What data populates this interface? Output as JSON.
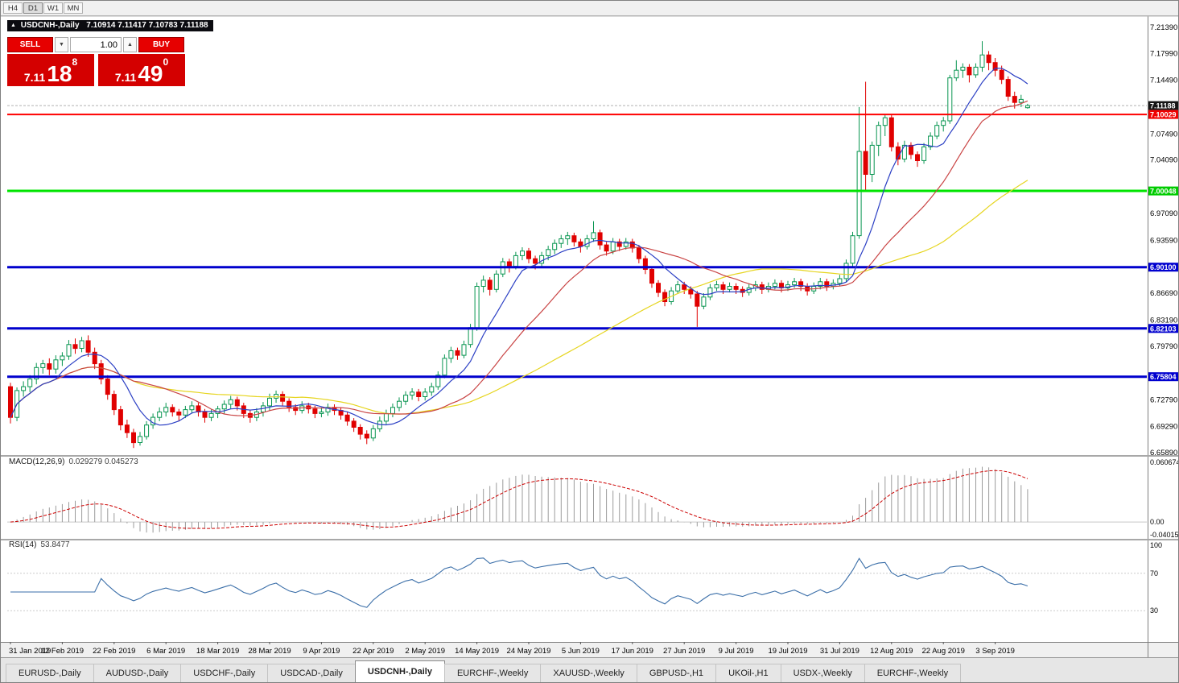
{
  "toolbar": {
    "timeframes": [
      "H4",
      "D1",
      "W1",
      "MN"
    ],
    "active": "D1"
  },
  "icons": {
    "title_arrow": "▲",
    "caret_down": "▼",
    "caret_up": "▲"
  },
  "chart": {
    "title": {
      "symbol": "USDCNH-,Daily",
      "ohlc": "7.10914 7.11417 7.10783 7.11188"
    },
    "trade_panel": {
      "sell_label": "SELL",
      "buy_label": "BUY",
      "volume": "1.00",
      "bid": {
        "big": "7.11",
        "mid": "18",
        "sup": "8"
      },
      "ask": {
        "big": "7.11",
        "mid": "49",
        "sup": "0"
      }
    },
    "price_axis": {
      "ticks": [
        "7.21390",
        "7.17990",
        "7.14490",
        "7.07490",
        "7.04090",
        "6.97090",
        "6.93590",
        "6.86690",
        "6.83190",
        "6.79790",
        "6.72790",
        "6.69290",
        "6.65890"
      ],
      "badges": [
        {
          "text": "7.11188",
          "price": 7.11188,
          "bg": "#161616",
          "fg": "#ffffff"
        },
        {
          "text": "7.10029",
          "price": 7.10029,
          "bg": "#f00000",
          "fg": "#ffffff"
        },
        {
          "text": "7.00048",
          "price": 7.00048,
          "bg": "#00cc00",
          "fg": "#ffffff"
        },
        {
          "text": "6.90100",
          "price": 6.901,
          "bg": "#0000cf",
          "fg": "#ffffff"
        },
        {
          "text": "6.82103",
          "price": 6.82103,
          "bg": "#0000cf",
          "fg": "#ffffff"
        },
        {
          "text": "6.75804",
          "price": 6.75804,
          "bg": "#0000cf",
          "fg": "#ffffff"
        }
      ]
    },
    "hlines": [
      {
        "price": 7.10029,
        "color": "#ff0000",
        "width": 2
      },
      {
        "price": 7.00048,
        "color": "#00e400",
        "width": 3
      },
      {
        "price": 6.901,
        "color": "#0000cd",
        "width": 3
      },
      {
        "price": 6.82103,
        "color": "#0000cd",
        "width": 3
      },
      {
        "price": 6.75804,
        "color": "#0000cd",
        "width": 3
      }
    ]
  },
  "macd_panel": {
    "label": "MACD(12,26,9)",
    "values": "0.029279 0.045273",
    "axis": [
      "0.060674",
      "0.00",
      "-0.040152"
    ]
  },
  "rsi_panel": {
    "label": "RSI(14)",
    "value": "53.8477",
    "axis": [
      "100",
      "70",
      "30"
    ]
  },
  "date_axis": {
    "step": 8,
    "labels": [
      "31 Jan 2019",
      "12 Feb 2019",
      "22 Feb 2019",
      "6 Mar 2019",
      "18 Mar 2019",
      "28 Mar 2019",
      "9 Apr 2019",
      "22 Apr 2019",
      "2 May 2019",
      "14 May 2019",
      "24 May 2019",
      "5 Jun 2019",
      "17 Jun 2019",
      "27 Jun 2019",
      "9 Jul 2019",
      "19 Jul 2019",
      "31 Jul 2019",
      "12 Aug 2019",
      "22 Aug 2019",
      "3 Sep 2019"
    ]
  },
  "tabs": [
    {
      "label": "EURUSD-,Daily",
      "active": false
    },
    {
      "label": "AUDUSD-,Daily",
      "active": false
    },
    {
      "label": "USDCHF-,Daily",
      "active": false
    },
    {
      "label": "USDCAD-,Daily",
      "active": false
    },
    {
      "label": "USDCNH-,Daily",
      "active": true
    },
    {
      "label": "EURCHF-,Weekly",
      "active": false
    },
    {
      "label": "XAUUSD-,Weekly",
      "active": false
    },
    {
      "label": "GBPUSD-,H1",
      "active": false
    },
    {
      "label": "UKOil-,H1",
      "active": false
    },
    {
      "label": "USDX-,Weekly",
      "active": false
    },
    {
      "label": "EURCHF-,Weekly",
      "active": false
    }
  ],
  "chart_data": {
    "type": "candlestick",
    "symbol": "USDCNH-",
    "timeframe": "Daily",
    "bid_price": 7.11188,
    "ask_price": 7.1149,
    "price_scale": {
      "top": 7.2276,
      "bottom": 6.6568
    },
    "colors": {
      "up": "#089550",
      "down": "#e00000"
    },
    "moving_averages": [
      {
        "period": 8,
        "color": "#2b3fc4"
      },
      {
        "period": 20,
        "color": "#c94444"
      },
      {
        "period": 45,
        "color": "#e6d51f"
      }
    ],
    "indicators": [
      {
        "name": "MACD",
        "params": [
          12,
          26,
          9
        ],
        "value": 0.029279,
        "signal": 0.045273
      },
      {
        "name": "RSI",
        "params": [
          14
        ],
        "value": 53.8477
      }
    ],
    "ohlc": [
      [
        6.745,
        6.75,
        6.697,
        6.705
      ],
      [
        6.705,
        6.744,
        6.7,
        6.74
      ],
      [
        6.74,
        6.752,
        6.732,
        6.745
      ],
      [
        6.745,
        6.76,
        6.738,
        6.755
      ],
      [
        6.755,
        6.776,
        6.748,
        6.77
      ],
      [
        6.77,
        6.78,
        6.762,
        6.775
      ],
      [
        6.775,
        6.782,
        6.76,
        6.768
      ],
      [
        6.768,
        6.786,
        6.762,
        6.78
      ],
      [
        6.78,
        6.79,
        6.772,
        6.785
      ],
      [
        6.785,
        6.806,
        6.78,
        6.8
      ],
      [
        6.8,
        6.808,
        6.788,
        6.795
      ],
      [
        6.795,
        6.81,
        6.79,
        6.805
      ],
      [
        6.805,
        6.812,
        6.784,
        6.79
      ],
      [
        6.79,
        6.796,
        6.768,
        6.775
      ],
      [
        6.775,
        6.78,
        6.748,
        6.755
      ],
      [
        6.755,
        6.76,
        6.728,
        6.735
      ],
      [
        6.735,
        6.74,
        6.708,
        6.715
      ],
      [
        6.715,
        6.72,
        6.688,
        6.695
      ],
      [
        6.695,
        6.702,
        6.678,
        6.685
      ],
      [
        6.685,
        6.69,
        6.665,
        6.672
      ],
      [
        6.672,
        6.686,
        6.668,
        6.68
      ],
      [
        6.68,
        6.7,
        6.676,
        6.695
      ],
      [
        6.695,
        6.71,
        6.69,
        6.705
      ],
      [
        6.705,
        6.718,
        6.7,
        6.712
      ],
      [
        6.712,
        6.724,
        6.706,
        6.718
      ],
      [
        6.718,
        6.722,
        6.706,
        6.712
      ],
      [
        6.712,
        6.716,
        6.7,
        6.708
      ],
      [
        6.708,
        6.72,
        6.704,
        6.715
      ],
      [
        6.715,
        6.726,
        6.71,
        6.72
      ],
      [
        6.72,
        6.724,
        6.706,
        6.712
      ],
      [
        6.712,
        6.716,
        6.698,
        6.705
      ],
      [
        6.705,
        6.715,
        6.7,
        6.71
      ],
      [
        6.71,
        6.72,
        6.704,
        6.716
      ],
      [
        6.716,
        6.727,
        6.71,
        6.722
      ],
      [
        6.722,
        6.733,
        6.716,
        6.728
      ],
      [
        6.728,
        6.732,
        6.714,
        6.72
      ],
      [
        6.72,
        6.724,
        6.704,
        6.71
      ],
      [
        6.71,
        6.714,
        6.698,
        6.705
      ],
      [
        6.705,
        6.717,
        6.7,
        6.712
      ],
      [
        6.712,
        6.725,
        6.706,
        6.72
      ],
      [
        6.72,
        6.736,
        6.714,
        6.73
      ],
      [
        6.73,
        6.74,
        6.724,
        6.735
      ],
      [
        6.735,
        6.739,
        6.72,
        6.726
      ],
      [
        6.726,
        6.73,
        6.712,
        6.718
      ],
      [
        6.718,
        6.722,
        6.708,
        6.714
      ],
      [
        6.714,
        6.726,
        6.71,
        6.72
      ],
      [
        6.72,
        6.724,
        6.71,
        6.716
      ],
      [
        6.716,
        6.72,
        6.704,
        6.71
      ],
      [
        6.71,
        6.718,
        6.705,
        6.712
      ],
      [
        6.712,
        6.723,
        6.707,
        6.718
      ],
      [
        6.718,
        6.722,
        6.708,
        6.714
      ],
      [
        6.714,
        6.718,
        6.702,
        6.708
      ],
      [
        6.708,
        6.712,
        6.694,
        6.7
      ],
      [
        6.7,
        6.704,
        6.686,
        6.692
      ],
      [
        6.692,
        6.696,
        6.676,
        6.683
      ],
      [
        6.683,
        6.688,
        6.67,
        6.678
      ],
      [
        6.678,
        6.695,
        6.674,
        6.69
      ],
      [
        6.69,
        6.706,
        6.686,
        6.7
      ],
      [
        6.7,
        6.715,
        6.696,
        6.71
      ],
      [
        6.71,
        6.723,
        6.705,
        6.718
      ],
      [
        6.718,
        6.731,
        6.713,
        6.726
      ],
      [
        6.726,
        6.739,
        6.721,
        6.734
      ],
      [
        6.734,
        6.743,
        6.728,
        6.738
      ],
      [
        6.738,
        6.742,
        6.726,
        6.732
      ],
      [
        6.732,
        6.743,
        6.727,
        6.738
      ],
      [
        6.738,
        6.75,
        6.733,
        6.745
      ],
      [
        6.745,
        6.765,
        6.741,
        6.76
      ],
      [
        6.76,
        6.787,
        6.756,
        6.782
      ],
      [
        6.782,
        6.797,
        6.776,
        6.792
      ],
      [
        6.792,
        6.796,
        6.78,
        6.786
      ],
      [
        6.786,
        6.805,
        6.782,
        6.8
      ],
      [
        6.8,
        6.827,
        6.796,
        6.822
      ],
      [
        6.822,
        6.881,
        6.818,
        6.876
      ],
      [
        6.876,
        6.89,
        6.868,
        6.884
      ],
      [
        6.884,
        6.888,
        6.864,
        6.872
      ],
      [
        6.872,
        6.897,
        6.868,
        6.892
      ],
      [
        6.892,
        6.913,
        6.888,
        6.908
      ],
      [
        6.908,
        6.912,
        6.894,
        6.902
      ],
      [
        6.902,
        6.921,
        6.898,
        6.916
      ],
      [
        6.916,
        6.927,
        6.91,
        6.922
      ],
      [
        6.922,
        6.926,
        6.906,
        6.912
      ],
      [
        6.912,
        6.916,
        6.898,
        6.906
      ],
      [
        6.906,
        6.921,
        6.902,
        6.916
      ],
      [
        6.916,
        6.929,
        6.91,
        6.924
      ],
      [
        6.924,
        6.937,
        6.918,
        6.932
      ],
      [
        6.932,
        6.943,
        6.926,
        6.938
      ],
      [
        6.938,
        6.947,
        6.93,
        6.942
      ],
      [
        6.942,
        6.946,
        6.928,
        6.934
      ],
      [
        6.934,
        6.938,
        6.92,
        6.928
      ],
      [
        6.928,
        6.943,
        6.924,
        6.938
      ],
      [
        6.938,
        6.961,
        6.934,
        6.946
      ],
      [
        6.946,
        6.95,
        6.924,
        6.93
      ],
      [
        6.93,
        6.934,
        6.916,
        6.922
      ],
      [
        6.922,
        6.939,
        6.918,
        6.934
      ],
      [
        6.934,
        6.938,
        6.922,
        6.928
      ],
      [
        6.928,
        6.939,
        6.924,
        6.934
      ],
      [
        6.934,
        6.938,
        6.92,
        6.926
      ],
      [
        6.926,
        6.93,
        6.906,
        6.912
      ],
      [
        6.912,
        6.916,
        6.892,
        6.898
      ],
      [
        6.898,
        6.902,
        6.874,
        6.88
      ],
      [
        6.88,
        6.884,
        6.862,
        6.868
      ],
      [
        6.868,
        6.872,
        6.85,
        6.856
      ],
      [
        6.856,
        6.875,
        6.852,
        6.87
      ],
      [
        6.87,
        6.883,
        6.866,
        6.878
      ],
      [
        6.878,
        6.882,
        6.866,
        6.872
      ],
      [
        6.872,
        6.876,
        6.86,
        6.866
      ],
      [
        6.866,
        6.87,
        6.823,
        6.85
      ],
      [
        6.85,
        6.867,
        6.846,
        6.862
      ],
      [
        6.862,
        6.879,
        6.858,
        6.874
      ],
      [
        6.874,
        6.883,
        6.87,
        6.878
      ],
      [
        6.878,
        6.882,
        6.866,
        6.872
      ],
      [
        6.872,
        6.881,
        6.868,
        6.876
      ],
      [
        6.876,
        6.88,
        6.866,
        6.872
      ],
      [
        6.872,
        6.876,
        6.862,
        6.868
      ],
      [
        6.868,
        6.879,
        6.864,
        6.874
      ],
      [
        6.874,
        6.883,
        6.87,
        6.878
      ],
      [
        6.878,
        6.882,
        6.866,
        6.872
      ],
      [
        6.872,
        6.881,
        6.868,
        6.876
      ],
      [
        6.876,
        6.885,
        6.872,
        6.88
      ],
      [
        6.88,
        6.884,
        6.868,
        6.874
      ],
      [
        6.874,
        6.883,
        6.87,
        6.878
      ],
      [
        6.878,
        6.887,
        6.874,
        6.882
      ],
      [
        6.882,
        6.886,
        6.87,
        6.876
      ],
      [
        6.876,
        6.88,
        6.864,
        6.87
      ],
      [
        6.87,
        6.881,
        6.866,
        6.876
      ],
      [
        6.876,
        6.887,
        6.872,
        6.882
      ],
      [
        6.882,
        6.886,
        6.87,
        6.876
      ],
      [
        6.876,
        6.885,
        6.872,
        6.88
      ],
      [
        6.88,
        6.891,
        6.876,
        6.886
      ],
      [
        6.886,
        6.911,
        6.882,
        6.906
      ],
      [
        6.906,
        6.947,
        6.902,
        6.942
      ],
      [
        6.942,
        7.11,
        6.938,
        7.052
      ],
      [
        7.052,
        7.143,
        7.002,
        7.022
      ],
      [
        7.022,
        7.065,
        7.012,
        7.06
      ],
      [
        7.06,
        7.091,
        7.046,
        7.086
      ],
      [
        7.086,
        7.101,
        7.072,
        7.096
      ],
      [
        7.096,
        7.1,
        7.052,
        7.058
      ],
      [
        7.058,
        7.064,
        7.034,
        7.042
      ],
      [
        7.042,
        7.066,
        7.038,
        7.06
      ],
      [
        7.06,
        7.064,
        7.042,
        7.048
      ],
      [
        7.048,
        7.052,
        7.032,
        7.04
      ],
      [
        7.04,
        7.063,
        7.036,
        7.058
      ],
      [
        7.058,
        7.077,
        7.054,
        7.072
      ],
      [
        7.072,
        7.091,
        7.068,
        7.086
      ],
      [
        7.086,
        7.097,
        7.078,
        7.092
      ],
      [
        7.092,
        7.152,
        7.088,
        7.148
      ],
      [
        7.148,
        7.171,
        7.144,
        7.158
      ],
      [
        7.158,
        7.167,
        7.148,
        7.162
      ],
      [
        7.162,
        7.166,
        7.142,
        7.152
      ],
      [
        7.152,
        7.167,
        7.148,
        7.162
      ],
      [
        7.162,
        7.196,
        7.156,
        7.178
      ],
      [
        7.178,
        7.183,
        7.158,
        7.168
      ],
      [
        7.168,
        7.174,
        7.15,
        7.158
      ],
      [
        7.158,
        7.164,
        7.14,
        7.146
      ],
      [
        7.146,
        7.15,
        7.118,
        7.124
      ],
      [
        7.124,
        7.13,
        7.108,
        7.116
      ],
      [
        7.116,
        7.126,
        7.11,
        7.12
      ],
      [
        7.10914,
        7.11417,
        7.10783,
        7.11188
      ]
    ]
  }
}
